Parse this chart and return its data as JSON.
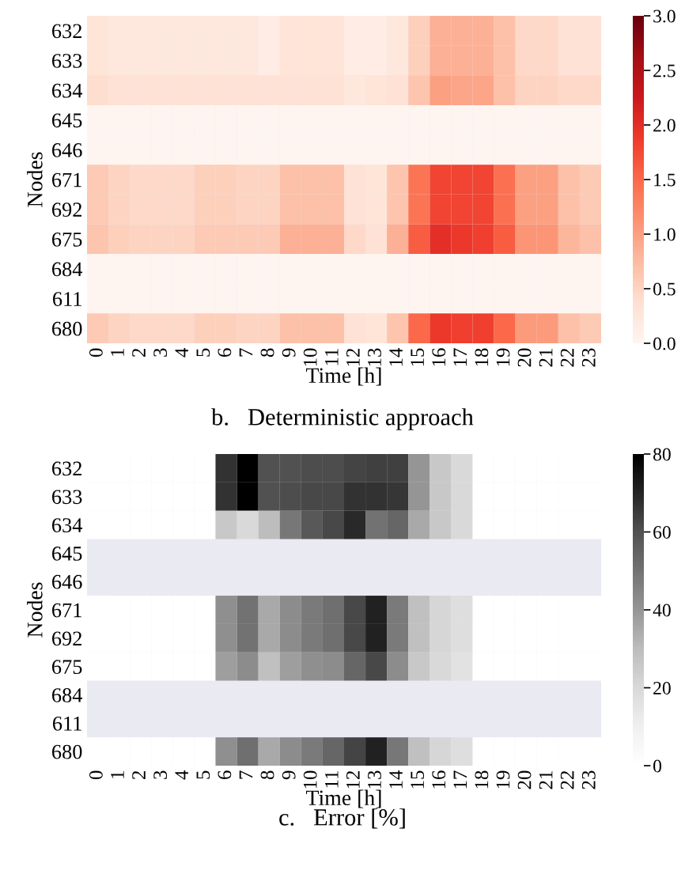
{
  "chart_data": [
    {
      "type": "heatmap",
      "xlabel": "Time [h]",
      "ylabel": "Nodes",
      "annotations": [
        "b.   Deterministic approach"
      ],
      "categories": [
        "0",
        "1",
        "2",
        "3",
        "4",
        "5",
        "6",
        "7",
        "8",
        "9",
        "10",
        "11",
        "12",
        "13",
        "14",
        "15",
        "16",
        "17",
        "18",
        "19",
        "20",
        "21",
        "22",
        "23"
      ],
      "y_categories": [
        "632",
        "633",
        "634",
        "645",
        "646",
        "671",
        "692",
        "675",
        "684",
        "611",
        "680"
      ],
      "cells": [
        [
          0.3,
          0.25,
          0.25,
          0.25,
          0.25,
          0.25,
          0.25,
          0.25,
          0.15,
          0.3,
          0.3,
          0.3,
          0.15,
          0.15,
          0.25,
          0.55,
          0.85,
          0.85,
          0.85,
          0.7,
          0.45,
          0.45,
          0.35,
          0.35
        ],
        [
          0.3,
          0.25,
          0.25,
          0.25,
          0.25,
          0.25,
          0.25,
          0.25,
          0.15,
          0.3,
          0.3,
          0.3,
          0.15,
          0.15,
          0.25,
          0.55,
          0.85,
          0.85,
          0.85,
          0.7,
          0.45,
          0.45,
          0.35,
          0.35
        ],
        [
          0.4,
          0.35,
          0.35,
          0.35,
          0.35,
          0.35,
          0.35,
          0.35,
          0.35,
          0.35,
          0.35,
          0.35,
          0.25,
          0.3,
          0.35,
          0.65,
          1.0,
          0.95,
          0.95,
          0.7,
          0.5,
          0.5,
          0.45,
          0.45
        ],
        [
          0,
          0,
          0,
          0,
          0,
          0,
          0,
          0,
          0,
          0,
          0,
          0,
          0,
          0,
          0,
          0,
          0,
          0,
          0,
          0,
          0,
          0,
          0,
          0
        ],
        [
          0,
          0,
          0,
          0,
          0,
          0,
          0,
          0,
          0,
          0,
          0,
          0,
          0,
          0,
          0,
          0,
          0,
          0,
          0,
          0,
          0,
          0,
          0,
          0
        ],
        [
          0.6,
          0.5,
          0.45,
          0.45,
          0.45,
          0.55,
          0.55,
          0.5,
          0.5,
          0.7,
          0.7,
          0.7,
          0.35,
          0.3,
          0.65,
          1.4,
          1.8,
          1.8,
          1.8,
          1.45,
          1.0,
          1.0,
          0.7,
          0.6
        ],
        [
          0.6,
          0.5,
          0.45,
          0.45,
          0.45,
          0.55,
          0.55,
          0.5,
          0.5,
          0.7,
          0.7,
          0.7,
          0.35,
          0.3,
          0.65,
          1.4,
          1.8,
          1.8,
          1.8,
          1.45,
          1.0,
          1.0,
          0.7,
          0.6
        ],
        [
          0.65,
          0.55,
          0.5,
          0.5,
          0.5,
          0.6,
          0.6,
          0.6,
          0.6,
          0.85,
          0.85,
          0.85,
          0.45,
          0.35,
          0.85,
          1.6,
          2.0,
          1.9,
          1.85,
          1.6,
          1.1,
          1.1,
          0.8,
          0.7
        ],
        [
          0,
          0,
          0,
          0,
          0,
          0,
          0,
          0,
          0,
          0,
          0,
          0,
          0,
          0,
          0,
          0,
          0,
          0,
          0,
          0,
          0,
          0,
          0,
          0
        ],
        [
          0,
          0,
          0,
          0,
          0,
          0,
          0,
          0,
          0,
          0,
          0,
          0,
          0,
          0,
          0,
          0,
          0,
          0,
          0,
          0,
          0,
          0,
          0,
          0
        ],
        [
          0.6,
          0.5,
          0.45,
          0.45,
          0.45,
          0.55,
          0.55,
          0.5,
          0.5,
          0.7,
          0.7,
          0.7,
          0.35,
          0.3,
          0.65,
          1.5,
          1.9,
          1.85,
          1.85,
          1.5,
          1.05,
          1.05,
          0.7,
          0.6
        ]
      ],
      "clim": [
        0,
        3
      ],
      "cticks": [
        {
          "value": 0,
          "label": "0.0"
        },
        {
          "value": 0.5,
          "label": "0.5"
        },
        {
          "value": 1,
          "label": "1.0"
        },
        {
          "value": 1.5,
          "label": "1.5"
        },
        {
          "value": 2,
          "label": "2.0"
        },
        {
          "value": 2.5,
          "label": "2.5"
        },
        {
          "value": 3,
          "label": "3.0"
        }
      ]
    },
    {
      "type": "heatmap",
      "xlabel": "Time [h]",
      "ylabel": "Nodes",
      "annotations": [
        "c.   Error [%]"
      ],
      "categories": [
        "0",
        "1",
        "2",
        "3",
        "4",
        "5",
        "6",
        "7",
        "8",
        "9",
        "10",
        "11",
        "12",
        "13",
        "14",
        "15",
        "16",
        "17",
        "18",
        "19",
        "20",
        "21",
        "22",
        "23"
      ],
      "y_categories": [
        "632",
        "633",
        "634",
        "645",
        "646",
        "671",
        "692",
        "675",
        "684",
        "611",
        "680"
      ],
      "cells": [
        [
          0,
          0,
          0,
          0,
          0,
          0,
          67,
          80,
          60,
          60,
          61,
          61,
          63,
          64,
          64,
          40,
          26,
          20,
          0,
          0,
          0,
          0,
          0,
          0
        ],
        [
          0,
          0,
          0,
          0,
          0,
          0,
          67,
          80,
          60,
          61,
          62,
          62,
          67,
          67,
          66,
          40,
          26,
          20,
          0,
          0,
          0,
          0,
          0,
          0
        ],
        [
          0,
          0,
          0,
          0,
          0,
          0,
          26,
          20,
          30,
          49,
          58,
          62,
          69,
          50,
          54,
          35,
          26,
          20,
          0,
          0,
          0,
          0,
          0,
          0
        ],
        [
          null,
          null,
          null,
          null,
          null,
          null,
          null,
          null,
          null,
          null,
          null,
          null,
          null,
          null,
          null,
          null,
          null,
          null,
          null,
          null,
          null,
          null,
          null,
          null
        ],
        [
          null,
          null,
          null,
          null,
          null,
          null,
          null,
          null,
          null,
          null,
          null,
          null,
          null,
          null,
          null,
          null,
          null,
          null,
          null,
          null,
          null,
          null,
          null,
          null
        ],
        [
          0,
          0,
          0,
          0,
          0,
          0,
          42,
          50,
          35,
          43,
          48,
          51,
          62,
          71,
          48,
          29,
          21,
          18,
          0,
          0,
          0,
          0,
          0,
          0
        ],
        [
          0,
          0,
          0,
          0,
          0,
          0,
          42,
          50,
          35,
          43,
          48,
          51,
          62,
          71,
          48,
          29,
          21,
          18,
          0,
          0,
          0,
          0,
          0,
          0
        ],
        [
          0,
          0,
          0,
          0,
          0,
          0,
          38,
          43,
          29,
          38,
          42,
          43,
          54,
          62,
          43,
          26,
          20,
          16,
          0,
          0,
          0,
          0,
          0,
          0
        ],
        [
          null,
          null,
          null,
          null,
          null,
          null,
          null,
          null,
          null,
          null,
          null,
          null,
          null,
          null,
          null,
          null,
          null,
          null,
          null,
          null,
          null,
          null,
          null,
          null
        ],
        [
          null,
          null,
          null,
          null,
          null,
          null,
          null,
          null,
          null,
          null,
          null,
          null,
          null,
          null,
          null,
          null,
          null,
          null,
          null,
          null,
          null,
          null,
          null,
          null
        ],
        [
          0,
          0,
          0,
          0,
          0,
          0,
          42,
          51,
          35,
          43,
          48,
          54,
          63,
          71,
          49,
          29,
          21,
          18,
          0,
          0,
          0,
          0,
          0,
          0
        ]
      ],
      "clim": [
        0,
        80
      ],
      "cticks": [
        0,
        20,
        40,
        60,
        80
      ]
    }
  ]
}
